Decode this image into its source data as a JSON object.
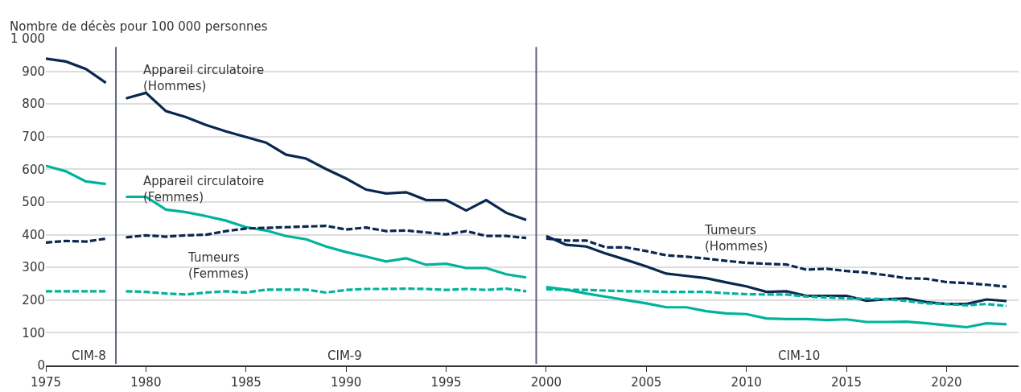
{
  "chart_data": {
    "type": "line",
    "ylabel": "Nombre de décès pour 100 000 personnes",
    "x": [
      1975,
      1976,
      1977,
      1978,
      1978.5,
      1979,
      1980,
      1981,
      1982,
      1983,
      1984,
      1985,
      1986,
      1987,
      1988,
      1989,
      1990,
      1991,
      1992,
      1993,
      1994,
      1995,
      1996,
      1997,
      1998,
      1999,
      1999.5,
      2000,
      2001,
      2002,
      2003,
      2004,
      2005,
      2006,
      2007,
      2008,
      2009,
      2010,
      2011,
      2012,
      2013,
      2014,
      2015,
      2016,
      2017,
      2018,
      2019,
      2020,
      2021,
      2022,
      2023
    ],
    "series": [
      {
        "color": "#0a2750",
        "line_style": "solid",
        "values": [
          939,
          930,
          907,
          865,
          null,
          817,
          834,
          778,
          760,
          736,
          716,
          699,
          682,
          645,
          633,
          601,
          572,
          538,
          526,
          530,
          506,
          506,
          474,
          506,
          467,
          445,
          null,
          396,
          369,
          364,
          342,
          323,
          303,
          281,
          274,
          267,
          254,
          242,
          225,
          227,
          213,
          213,
          213,
          198,
          203,
          205,
          194,
          188,
          188,
          202,
          197
        ]
      },
      {
        "color": "#00b39b",
        "line_style": "solid",
        "values": [
          611,
          594,
          563,
          555,
          null,
          516,
          516,
          477,
          469,
          457,
          443,
          423,
          413,
          396,
          386,
          364,
          347,
          333,
          318,
          328,
          308,
          311,
          298,
          298,
          279,
          269,
          null,
          240,
          232,
          220,
          210,
          200,
          190,
          178,
          178,
          166,
          159,
          157,
          144,
          142,
          142,
          139,
          141,
          133,
          133,
          134,
          129,
          123,
          117,
          129,
          126
        ]
      },
      {
        "color": "#0a2750",
        "line_style": "dashed",
        "values": [
          376,
          381,
          379,
          388,
          null,
          392,
          398,
          394,
          398,
          400,
          411,
          419,
          421,
          423,
          425,
          427,
          416,
          422,
          411,
          413,
          407,
          401,
          411,
          396,
          396,
          390,
          null,
          388,
          382,
          382,
          361,
          361,
          350,
          337,
          333,
          327,
          320,
          314,
          311,
          309,
          293,
          296,
          289,
          284,
          276,
          267,
          265,
          255,
          252,
          247,
          241
        ]
      },
      {
        "color": "#00b39b",
        "line_style": "dashed",
        "values": [
          227,
          227,
          227,
          227,
          null,
          227,
          225,
          220,
          217,
          223,
          227,
          223,
          232,
          232,
          232,
          223,
          231,
          234,
          234,
          235,
          234,
          231,
          234,
          231,
          235,
          227,
          null,
          233,
          231,
          231,
          229,
          227,
          227,
          225,
          225,
          225,
          221,
          218,
          217,
          217,
          211,
          208,
          205,
          204,
          203,
          197,
          190,
          188,
          184,
          188,
          182
        ]
      }
    ],
    "xlim": [
      1975,
      2023.6
    ],
    "xticks": [
      1975,
      1980,
      1985,
      1990,
      1995,
      2000,
      2005,
      2010,
      2015,
      2020
    ],
    "ylim": [
      0,
      1000
    ],
    "yticks": [
      0,
      100,
      200,
      300,
      400,
      500,
      600,
      700,
      800,
      900,
      {
        "value": 1000,
        "label": "1 000"
      }
    ],
    "grid": "y",
    "legend": false,
    "ref_lines": [
      {
        "axis": "x",
        "value": 1978.5,
        "color": "#5a6478"
      },
      {
        "axis": "x",
        "value": 1999.5,
        "color": "#5a6478"
      }
    ],
    "annotations": [
      "Appareil circulatoire\n(Hommes)",
      "Appareil circulatoire\n(Femmes)",
      "Tumeurs\n(Femmes)",
      "Tumeurs\n(Hommes)",
      "CIM-8",
      "CIM-9",
      "CIM-10"
    ]
  }
}
